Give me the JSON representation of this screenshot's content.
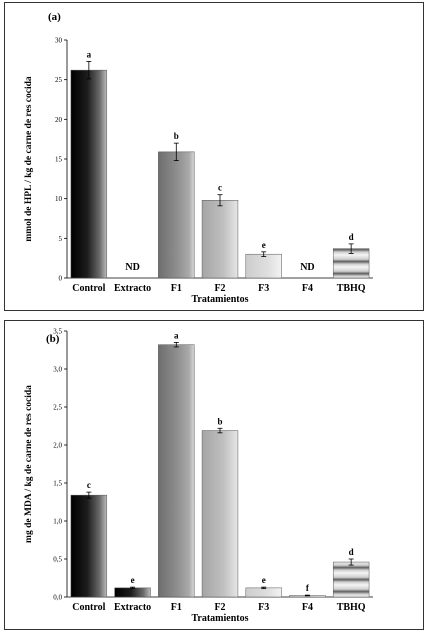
{
  "chart_data": [
    {
      "type": "bar",
      "panel_label": "(a)",
      "ylabel": "mmol de HPL / kg de carne de res cocida",
      "xlabel": "Tratamientos",
      "ylim": [
        0,
        30
      ],
      "yticks": [
        "0",
        "5",
        "10",
        "15",
        "20",
        "25",
        "30"
      ],
      "categories": [
        "Control",
        "Extracto",
        "F1",
        "F2",
        "F3",
        "F4",
        "TBHQ"
      ],
      "values": [
        26.2,
        null,
        15.9,
        9.8,
        3.0,
        null,
        3.7
      ],
      "errors": [
        1.1,
        null,
        1.1,
        0.7,
        0.3,
        null,
        0.6
      ],
      "labels": [
        "a",
        "ND",
        "b",
        "c",
        "e",
        "ND",
        "d"
      ],
      "fills": [
        "dark",
        "none",
        "mid",
        "light",
        "lighter",
        "none",
        "striped"
      ]
    },
    {
      "type": "bar",
      "panel_label": "(b)",
      "ylabel": "mg de MDA / kg de carne de res cocida",
      "xlabel": "Tratamientos",
      "ylim": [
        0,
        3.5
      ],
      "yticks": [
        "0,0",
        "0,5",
        "1,0",
        "1,5",
        "2,0",
        "2,5",
        "3,0",
        "3,5"
      ],
      "categories": [
        "Control",
        "Extracto",
        "F1",
        "F2",
        "F3",
        "F4",
        "TBHQ"
      ],
      "values": [
        1.34,
        0.12,
        3.32,
        2.19,
        0.12,
        0.02,
        0.46
      ],
      "errors": [
        0.04,
        0.01,
        0.03,
        0.03,
        0.01,
        0.005,
        0.04
      ],
      "labels": [
        "c",
        "e",
        "a",
        "b",
        "e",
        "f",
        "d"
      ],
      "fills": [
        "dark",
        "dark",
        "mid",
        "light",
        "lighter",
        "lighter",
        "striped"
      ]
    }
  ]
}
